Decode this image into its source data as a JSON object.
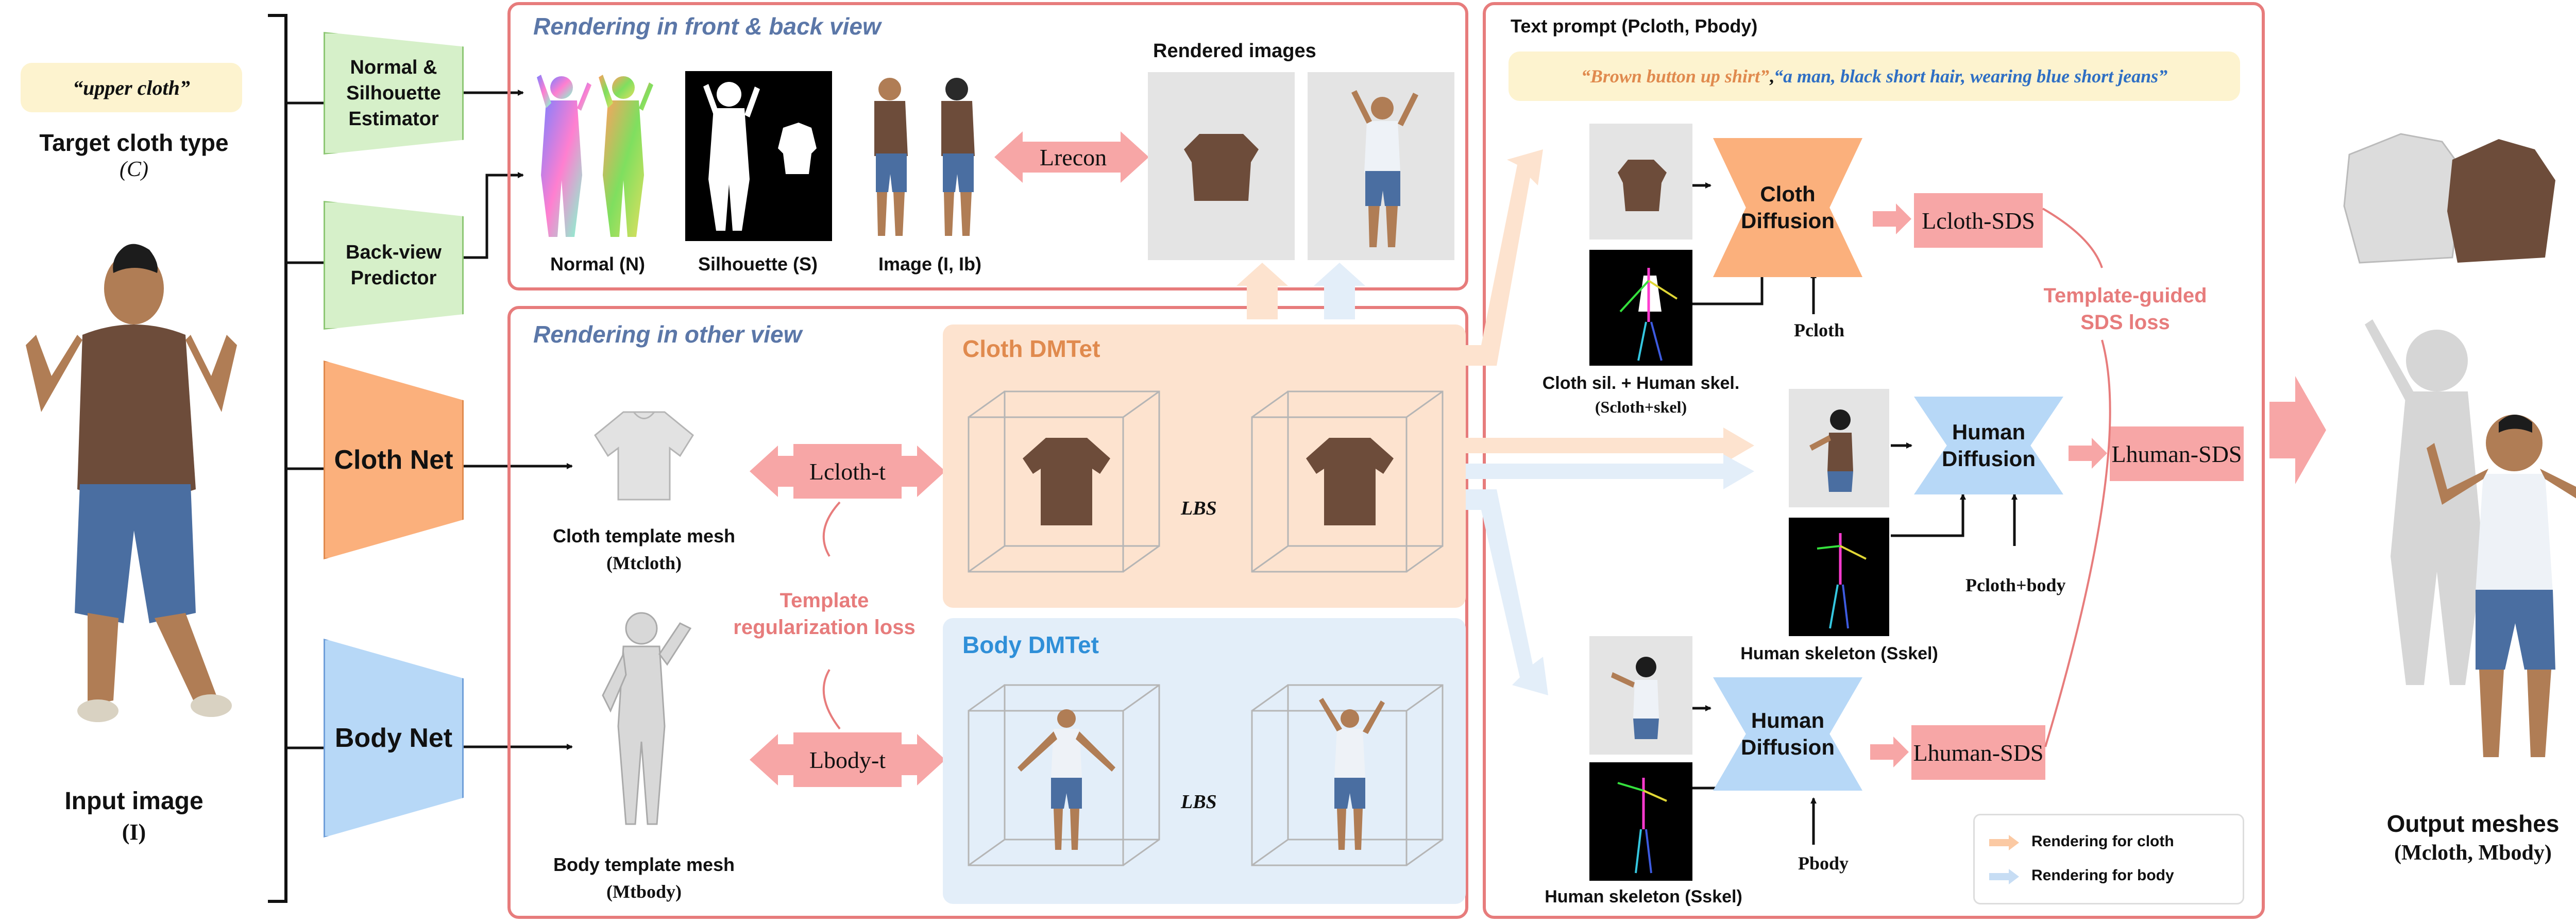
{
  "target": {
    "tag_text": "“upper cloth”",
    "title": "Target cloth type",
    "symbol": "(C)"
  },
  "input": {
    "title": "Input image",
    "symbol": "(I)"
  },
  "blocks": {
    "normal_estimator": "Normal & Silhouette Estimator",
    "back_predictor": "Back-view Predictor",
    "cloth_net": "Cloth Net",
    "body_net": "Body Net"
  },
  "front_back": {
    "title": "Rendering in front & back view",
    "rendered_images": "Rendered images",
    "normal_label": "Normal (N)",
    "silhouette_label": "Silhouette (S)",
    "image_label": "Image (I, Ib)",
    "loss_recon": "Lrecon"
  },
  "other_view": {
    "title": "Rendering in other view",
    "cloth_dmtet": "Cloth DMTet",
    "body_dmtet": "Body DMTet",
    "lbs": "LBS",
    "cloth_template": "Cloth template mesh",
    "cloth_template_sym": "(Mtcloth)",
    "body_template": "Body template mesh",
    "body_template_sym": "(Mtbody)",
    "loss_cloth_t": "Lcloth-t",
    "loss_body_t": "Lbody-t",
    "template_reg": "Template regularization loss"
  },
  "sds": {
    "prompt_title": "Text prompt (Pcloth, Pbody)",
    "prompt_cloth": "“Brown button up shirt”",
    "prompt_sep": ", ",
    "prompt_body": "“a man, black short hair, wearing blue short jeans”",
    "cloth_diffusion": "Cloth Diffusion",
    "human_diffusion": "Human Diffusion",
    "human_diffusion2": "Human Diffusion",
    "loss_cloth_sds": "Lcloth-SDS",
    "loss_human_sds": "Lhuman-SDS",
    "loss_human_sds2": "Lhuman-SDS",
    "p_cloth": "Pcloth",
    "p_cloth_body": "Pcloth+body",
    "p_body": "Pbody",
    "cloth_sil_label": "Cloth sil. + Human skel.",
    "cloth_sil_sym": "(Scloth+skel)",
    "human_skel_label": "Human skeleton (Sskel)",
    "human_skel_label2": "Human skeleton (Sskel)",
    "template_guided": "Template-guided SDS loss"
  },
  "legend": {
    "cloth": "Rendering for cloth",
    "body": "Rendering for body"
  },
  "output": {
    "title": "Output meshes",
    "symbol": "(Mcloth, Mbody)"
  },
  "colors": {
    "panel_border": "#e77c7c",
    "cloth_orange": "#fbb07c",
    "body_blue": "#b7d8f7",
    "loss_pink": "#f7a6a6",
    "green_block": "#d6f0c9",
    "title_blue": "#5b77a8"
  }
}
